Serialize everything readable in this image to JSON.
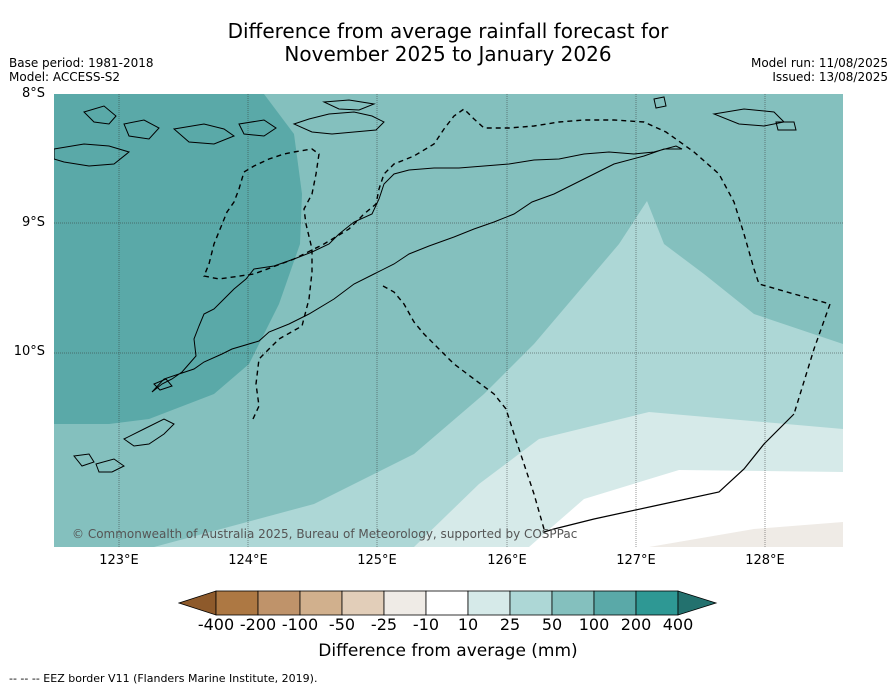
{
  "header": {
    "title_line1": "Difference from average rainfall forecast for",
    "title_line2": "November 2025 to January 2026",
    "base_period": "Base period: 1981-2018",
    "model": "Model: ACCESS-S2",
    "model_run": "Model run: 11/08/2025",
    "issued": "Issued: 13/08/2025"
  },
  "map": {
    "lat_labels": [
      "8°S",
      "9°S",
      "10°S"
    ],
    "lon_labels": [
      "123°E",
      "124°E",
      "125°E",
      "126°E",
      "127°E",
      "128°E"
    ],
    "copyright": "© Commonwealth of Australia 2025, Bureau of Meteorology, supported by COSPPac",
    "legend_line": "EEZ border"
  },
  "colorbar": {
    "ticks": [
      "-400",
      "-200",
      "-100",
      "-50",
      "-25",
      "-10",
      "10",
      "25",
      "50",
      "100",
      "200",
      "400"
    ],
    "colors": [
      "#8e5a2b",
      "#ad7843",
      "#bf936a",
      "#d1b08d",
      "#e2ceb9",
      "#efebe6",
      "#ffffff",
      "#d6eae9",
      "#add7d6",
      "#84c0be",
      "#5aa9a8",
      "#2e9894",
      "#23716e"
    ],
    "label": "Difference from average (mm)"
  },
  "footnote": "--  --  -- EEZ border V11 (Flanders Marine Institute, 2019)."
}
